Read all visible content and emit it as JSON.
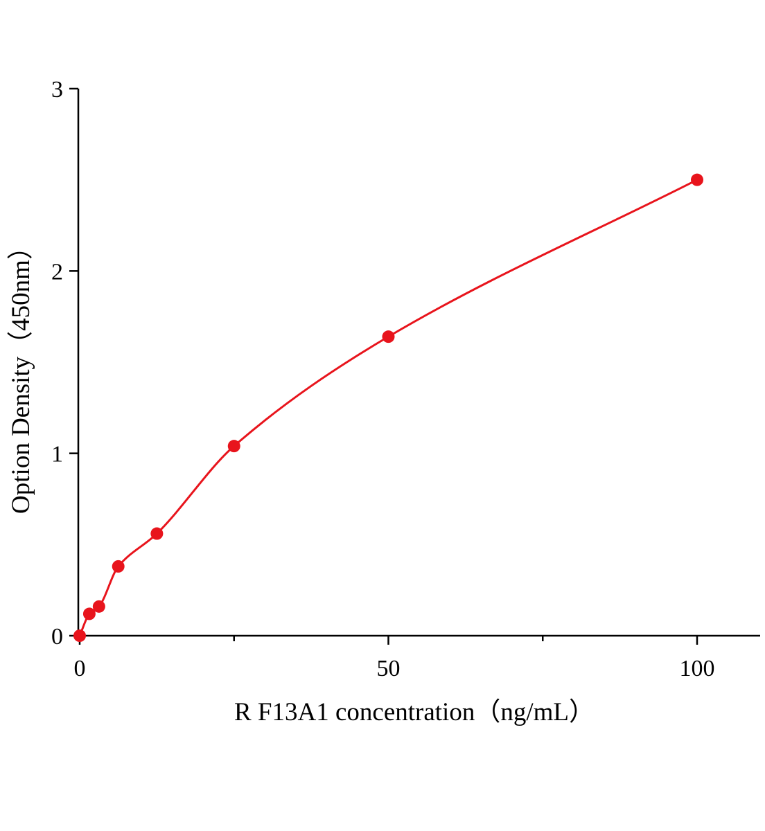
{
  "chart_data": {
    "type": "scatter",
    "x_label": "R F13A1  concentration（ng/mL）",
    "y_label": "Option Density（450nm）",
    "series": [
      {
        "color": "#e8141c",
        "x": [
          0,
          1.5625,
          3.125,
          6.25,
          12.5,
          25,
          50,
          100
        ],
        "values": [
          0,
          0.12,
          0.16,
          0.38,
          0.56,
          1.04,
          1.64,
          2.5
        ]
      }
    ],
    "xlim": [
      0,
      110
    ],
    "xticks": [
      0,
      50,
      100
    ],
    "xminorticks": [
      25,
      75
    ],
    "ylim": [
      0,
      3
    ],
    "yticks": [
      0,
      1,
      2,
      3
    ],
    "grid": false
  }
}
